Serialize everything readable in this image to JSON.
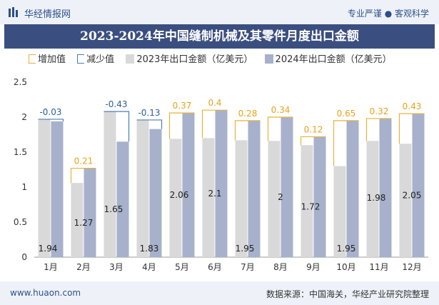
{
  "header": {
    "brand": "华经情报网",
    "tagline": "专业严谨 ● 客观科学"
  },
  "legend": {
    "increase": "增加值",
    "decrease": "减少值",
    "series_2023": "2023年出口金额（亿美元）",
    "series_2024": "2024年出口金额（亿美元）"
  },
  "footer": {
    "website": "www.huaon.com",
    "source": "数据来源：中国海关，华经产业研究院整理"
  },
  "colors": {
    "bar_2023": "#d9d9d9",
    "bar_2024": "#a7b1cb",
    "increase": "#e8b23a",
    "decrease": "#4a7fb5",
    "title_bg": "#3b4e80"
  },
  "chart_data": {
    "type": "bar",
    "title": "2023-2024年中国缝制机械及其零件月度出口金额",
    "categories": [
      "1月",
      "2月",
      "3月",
      "4月",
      "5月",
      "6月",
      "7月",
      "8月",
      "9月",
      "10月",
      "11月",
      "12月"
    ],
    "series": [
      {
        "name": "2023年出口金额（亿美元）",
        "values": [
          1.97,
          1.06,
          2.08,
          1.96,
          1.69,
          1.7,
          1.67,
          1.66,
          1.6,
          1.3,
          1.66,
          1.62
        ]
      },
      {
        "name": "2024年出口金额（亿美元）",
        "values": [
          1.94,
          1.27,
          1.65,
          1.83,
          2.06,
          2.1,
          1.95,
          2.0,
          1.72,
          1.95,
          1.98,
          2.05
        ]
      }
    ],
    "change": [
      "-0.03",
      "0.21",
      "-0.43",
      "-0.13",
      "0.37",
      "0.4",
      "0.28",
      "0.34",
      "0.12",
      "0.65",
      "0.32",
      "0.43"
    ],
    "value_labels": [
      "1.94",
      "1.27",
      "1.65",
      "1.83",
      "2.06",
      "2.1",
      "1.95",
      "2",
      "1.72",
      "1.95",
      "1.98",
      "2.05"
    ],
    "ylim": [
      0,
      2.5
    ],
    "yticks": [
      "0",
      "0.5",
      "1",
      "1.5",
      "2",
      "2.5"
    ],
    "xlabel": "",
    "ylabel": "",
    "grid": false,
    "legend_position": "top"
  }
}
